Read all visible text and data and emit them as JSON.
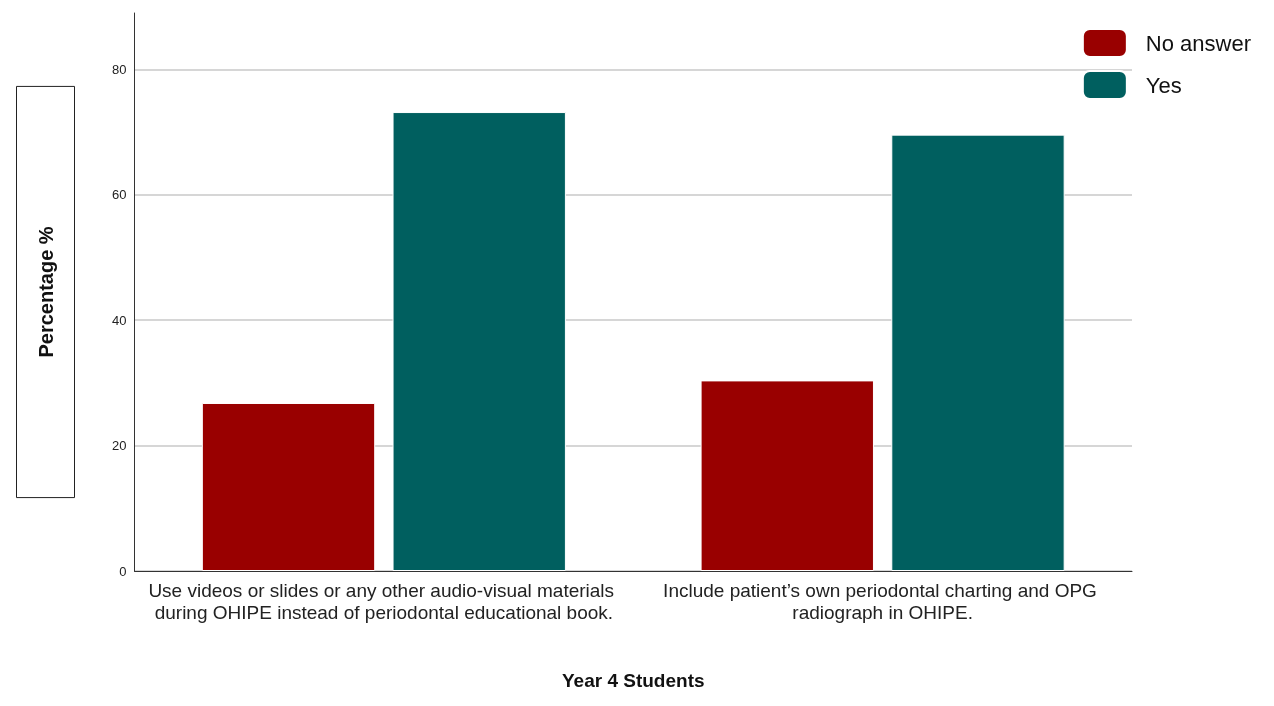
{
  "chart_data": {
    "type": "bar",
    "xlabel": "Year 4 Students",
    "ylabel": "Percentage %",
    "categories": [
      "Use videos or slides or any other audio-visual materials during OHIPE instead of periodontal educational book.",
      "Include patient’s own periodontal charting and OPG radiograph in OHIPE."
    ],
    "series": [
      {
        "name": "No answer",
        "color": "#990000",
        "values": [
          26.8,
          30.4
        ]
      },
      {
        "name": "Yes",
        "color": "#005f5f",
        "values": [
          73.2,
          69.6
        ]
      }
    ],
    "ylim": [
      0,
      89
    ],
    "yticks": [
      0,
      20,
      40,
      60,
      80
    ],
    "grid": "y",
    "legend": "top right"
  }
}
